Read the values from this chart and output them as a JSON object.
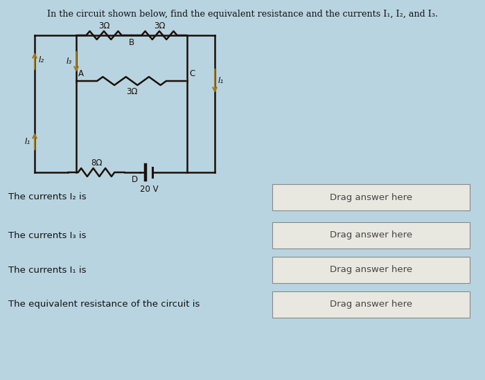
{
  "title": "In the circuit shown below, find the equivalent resistance and the currents I₁, I₂, and I₃.",
  "bg_color": "#b8d4e0",
  "circuit_bg": "#dde8d0",
  "line_color": "#1a1008",
  "drag_bg": "#e8e8e0",
  "drag_border": "#888888",
  "drag_text": "Drag answer here",
  "questions": [
    "The currents I₂ is",
    "The currents I₃ is",
    "The currents I₁ is",
    "The equivalent resistance of the circuit is"
  ],
  "arrow_color": "#a07820",
  "note_bg": "#c8dde8"
}
